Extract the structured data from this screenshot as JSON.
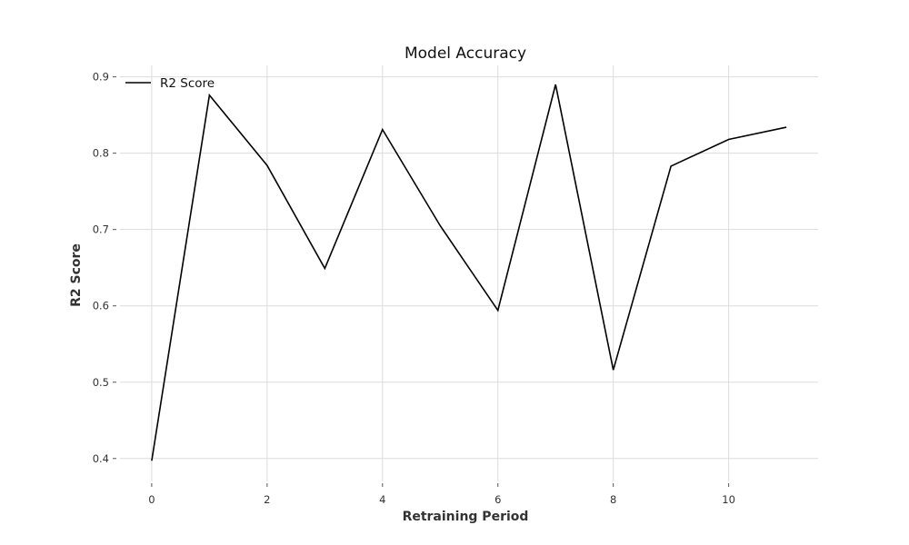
{
  "chart_data": {
    "type": "line",
    "title": "Model Accuracy",
    "xlabel": "Retraining Period",
    "ylabel": "R2 Score",
    "xlim": [
      -0.55,
      11.55
    ],
    "ylim": [
      0.37,
      0.915
    ],
    "xticks": [
      0,
      2,
      4,
      6,
      8,
      10
    ],
    "yticks": [
      0.4,
      0.5,
      0.6,
      0.7,
      0.8,
      0.9
    ],
    "grid": true,
    "legend_position": "top-left",
    "x": [
      0,
      1,
      2,
      3,
      4,
      5,
      6,
      7,
      8,
      9,
      10,
      11
    ],
    "series": [
      {
        "name": "R2 Score",
        "color": "#000000",
        "values": [
          0.397,
          0.876,
          0.784,
          0.649,
          0.831,
          0.705,
          0.594,
          0.89,
          0.516,
          0.783,
          0.818,
          0.834
        ]
      }
    ]
  }
}
